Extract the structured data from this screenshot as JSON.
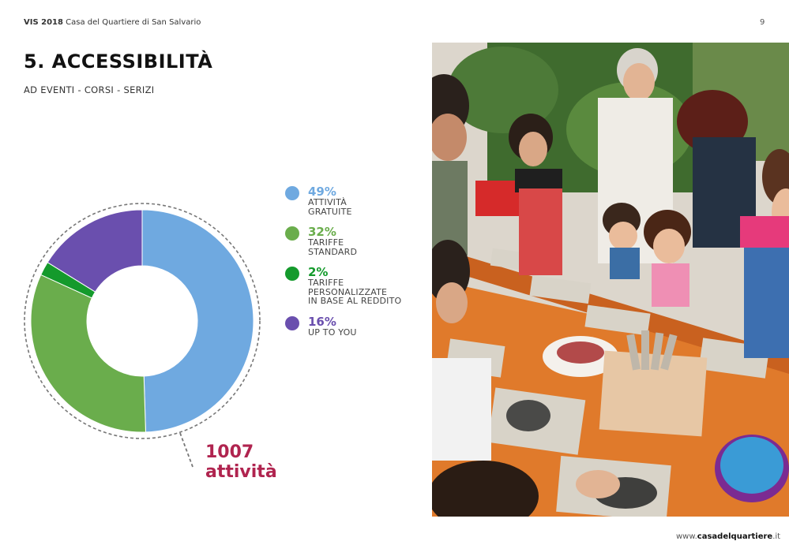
{
  "header": {
    "brand": "VIS 2018",
    "subtitle": "Casa del Quartiere di San Salvario",
    "page_number": "9"
  },
  "section": {
    "title": "5. ACCESSIBILITÀ",
    "subtitle": "AD EVENTI - CORSI - SERIZI"
  },
  "chart_data": {
    "type": "pie",
    "variant": "donut",
    "slices": [
      {
        "value_label": "49%",
        "label": "ATTIVITÀ\nGRATUITE",
        "value": 49,
        "color": "#6fa9e0"
      },
      {
        "value_label": "32%",
        "label": "TARIFFE\nSTANDARD",
        "value": 32,
        "color": "#6aad4c"
      },
      {
        "value_label": "2%",
        "label": "TARIFFE\nPERSONALIZZATE\nIN BASE AL REDDITO",
        "value": 2,
        "color": "#149a2c"
      },
      {
        "value_label": "16%",
        "label": "UP TO YOU",
        "value": 16,
        "color": "#6a4fae"
      }
    ],
    "total": {
      "number": "1007",
      "unit": "attività"
    }
  },
  "footer": {
    "prefix": "www.",
    "domain": "casadelquartiere",
    "suffix": ".it"
  }
}
